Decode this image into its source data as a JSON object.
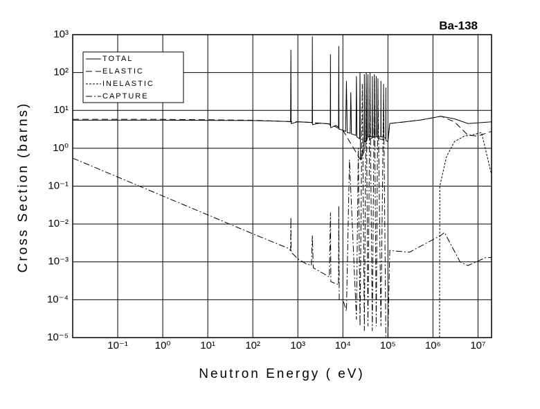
{
  "chart_data": {
    "type": "line",
    "title": "Ba-138",
    "xlabel": "Neutron Energy ( eV)",
    "ylabel": "Cross Section (barns)",
    "xscale": "log",
    "yscale": "log",
    "grid": true,
    "legend": "upper left",
    "xlim": [
      0.01,
      20000000
    ],
    "ylim": [
      1e-05,
      1000
    ],
    "xticks": [
      {
        "value": 0.1,
        "label": "10⁻¹"
      },
      {
        "value": 1,
        "label": "10⁰"
      },
      {
        "value": 10,
        "label": "10¹"
      },
      {
        "value": 100,
        "label": "10²"
      },
      {
        "value": 1000,
        "label": "10³"
      },
      {
        "value": 10000,
        "label": "10⁴"
      },
      {
        "value": 100000,
        "label": "10⁵"
      },
      {
        "value": 1000000,
        "label": "10⁶"
      },
      {
        "value": 10000000,
        "label": "10⁷"
      }
    ],
    "yticks": [
      {
        "value": 1e-05,
        "label": "10⁻⁵"
      },
      {
        "value": 0.0001,
        "label": "10⁻⁴"
      },
      {
        "value": 0.001,
        "label": "10⁻³"
      },
      {
        "value": 0.01,
        "label": "10⁻²"
      },
      {
        "value": 0.1,
        "label": "10⁻¹"
      },
      {
        "value": 1,
        "label": "10⁰"
      },
      {
        "value": 10,
        "label": "10¹"
      },
      {
        "value": 100,
        "label": "10²"
      },
      {
        "value": 1000,
        "label": "10³"
      }
    ],
    "series": [
      {
        "name": "TOTAL",
        "color": "#000000",
        "dash": "none",
        "x": [
          0.01,
          1,
          100,
          600,
          690,
          700,
          710,
          1000,
          2000,
          2080,
          2100,
          2120,
          3000,
          5000,
          5250,
          5300,
          5350,
          7000,
          8000,
          8100,
          8200,
          10000,
          11500,
          12000,
          12500,
          14500,
          15000,
          15500,
          19500,
          20000,
          20500,
          23500,
          24000,
          24500,
          29500,
          30000,
          30500,
          32500,
          33000,
          33500,
          35500,
          36000,
          36500,
          39500,
          40000,
          40500,
          44500,
          45000,
          45500,
          49500,
          50000,
          50500,
          54500,
          55000,
          55500,
          59500,
          60000,
          60500,
          69500,
          70000,
          70500,
          79500,
          80000,
          80500,
          89500,
          90000,
          90500,
          100000,
          110000,
          500000,
          1500000,
          3000000,
          6000000,
          20000000
        ],
        "values": [
          5.5,
          5.5,
          5.4,
          5.1,
          5,
          400,
          4.5,
          5,
          4.8,
          4.6,
          900,
          4.2,
          4.6,
          4.4,
          4,
          300,
          3.5,
          4,
          3.6,
          500,
          3.2,
          3,
          2.8,
          60,
          2.6,
          2.5,
          30,
          2.4,
          2.2,
          80,
          2,
          1.8,
          100,
          0.5,
          0.8,
          90,
          1.5,
          1.5,
          100,
          1.5,
          2,
          90,
          2,
          2,
          100,
          2,
          2,
          80,
          2,
          2,
          90,
          2,
          2,
          80,
          2,
          2,
          70,
          2,
          2,
          60,
          2,
          2,
          50,
          2,
          1.8,
          40,
          1.6,
          1.5,
          4.5,
          5.5,
          7,
          6,
          4.5,
          5
        ]
      },
      {
        "name": "ELASTIC",
        "color": "#000000",
        "dash": "9,5",
        "x": [
          0.01,
          1,
          100,
          600,
          1000,
          2000,
          5000,
          10000,
          24500,
          30000,
          50000,
          100000,
          110000,
          500000,
          1500000,
          3000000,
          6000000,
          10000000,
          20000000
        ],
        "values": [
          5.8,
          5.8,
          5.5,
          5.1,
          5,
          4.8,
          4.4,
          3,
          0.5,
          1.5,
          2,
          1.5,
          4.5,
          5.5,
          7,
          5,
          2.2,
          2.1,
          2.8
        ]
      },
      {
        "name": "INELASTIC",
        "color": "#000000",
        "dash": "3,2",
        "x": [
          1400000,
          1420000,
          2000000,
          3000000,
          5000000,
          8000000,
          12000000,
          20000000
        ],
        "values": [
          1e-05,
          0.1,
          0.6,
          1.5,
          2.1,
          2.3,
          2.6,
          0.2
        ]
      },
      {
        "name": "CAPTURE",
        "color": "#000000",
        "dash": "9,3,2,3",
        "x": [
          0.01,
          1,
          100,
          600,
          690,
          700,
          710,
          1000,
          1500,
          2000,
          2100,
          2200,
          5000,
          5300,
          5400,
          8000,
          8100,
          8300,
          10000,
          12000,
          14000,
          20000,
          22000,
          24000,
          27000,
          30000,
          33000,
          36000,
          40000,
          45000,
          50000,
          55000,
          60000,
          70000,
          80000,
          90000,
          100000,
          110000,
          300000,
          1500000,
          1800000,
          4000000,
          6000000,
          15000000,
          20000000
        ],
        "values": [
          0.55,
          0.055,
          0.0055,
          0.0023,
          0.002,
          0.015,
          0.0018,
          0.0012,
          0.0009,
          0.0008,
          0.005,
          0.0007,
          0.0004,
          0.02,
          0.0003,
          0.00025,
          0.03,
          0.0001,
          0.0001,
          5e-05,
          0.5,
          3e-05,
          1,
          2e-05,
          50,
          1.5e-05,
          80,
          2e-05,
          60,
          1.5e-05,
          70,
          2e-05,
          40,
          2e-05,
          30,
          1e-05,
          1e-05,
          0.002,
          0.0018,
          0.005,
          0.006,
          0.001,
          0.0008,
          0.0013,
          0.0013
        ]
      }
    ]
  }
}
